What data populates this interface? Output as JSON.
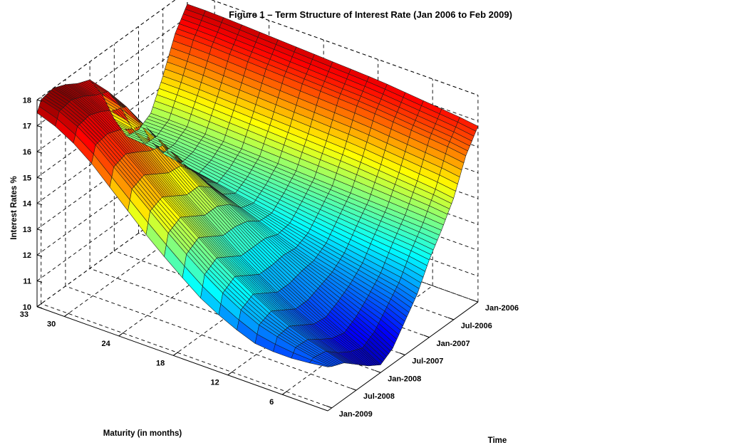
{
  "chart_data": {
    "type": "surface",
    "title": "Figure 1 – Term Structure of Interest Rate (Jan 2006 to Feb 2009)",
    "zlabel": "Interest Rates %",
    "ylabel": "Maturity (in months)",
    "xlabel": "Time",
    "z_ticks": [
      "10",
      "11",
      "12",
      "13",
      "14",
      "15",
      "16",
      "17",
      "18"
    ],
    "maturity_ticks": [
      "6",
      "12",
      "18",
      "24",
      "30",
      "33"
    ],
    "time_ticks": [
      "Jan-2006",
      "Jul-2006",
      "Jan-2007",
      "Jul-2007",
      "Jan-2008",
      "Jul-2008",
      "Jan-2009"
    ],
    "zlim": [
      10,
      18
    ],
    "maturity_lim": [
      1,
      33
    ],
    "time_range": [
      "Jan-2006",
      "Feb-2009"
    ],
    "colormap": "jet",
    "grid": true,
    "time_months_from_Jan2006": [
      0,
      3,
      6,
      9,
      12,
      15,
      18,
      21,
      24,
      27,
      30,
      33,
      36,
      37
    ],
    "maturity_months": [
      1,
      3,
      6,
      9,
      12,
      15,
      18,
      21,
      24,
      27,
      30,
      33
    ],
    "rates": [
      [
        16.8,
        16.9,
        17.0,
        17.1,
        17.2,
        17.25,
        17.3,
        17.35,
        17.4,
        17.45,
        17.5,
        17.5
      ],
      [
        16.0,
        16.1,
        16.2,
        16.3,
        16.4,
        16.45,
        16.5,
        16.55,
        16.6,
        16.65,
        16.7,
        16.7
      ],
      [
        14.7,
        14.8,
        14.9,
        15.0,
        15.1,
        15.15,
        15.2,
        15.25,
        15.3,
        15.35,
        15.4,
        15.4
      ],
      [
        13.8,
        13.85,
        13.9,
        13.95,
        14.0,
        14.05,
        14.1,
        14.15,
        14.2,
        14.25,
        14.3,
        14.3
      ],
      [
        13.0,
        13.1,
        13.2,
        13.3,
        13.4,
        13.5,
        13.6,
        13.7,
        13.8,
        13.9,
        14.0,
        14.0
      ],
      [
        12.0,
        12.2,
        12.4,
        12.6,
        12.8,
        13.0,
        13.2,
        13.4,
        13.6,
        13.8,
        14.0,
        14.1
      ],
      [
        11.3,
        11.6,
        11.9,
        12.2,
        12.5,
        12.9,
        13.3,
        13.7,
        14.1,
        14.5,
        14.9,
        15.1
      ],
      [
        10.6,
        11.0,
        11.5,
        12.0,
        12.5,
        13.1,
        13.7,
        14.3,
        14.9,
        15.5,
        16.1,
        16.4
      ],
      [
        10.3,
        10.7,
        11.2,
        11.8,
        12.4,
        13.1,
        13.9,
        14.7,
        15.5,
        16.3,
        17.0,
        17.3
      ],
      [
        10.6,
        10.9,
        11.3,
        11.8,
        12.4,
        13.1,
        13.9,
        14.7,
        15.6,
        16.5,
        17.2,
        17.5
      ],
      [
        11.0,
        11.2,
        11.6,
        12.1,
        12.7,
        13.4,
        14.2,
        15.0,
        15.9,
        16.8,
        17.5,
        17.8
      ],
      [
        11.4,
        11.6,
        11.9,
        12.4,
        13.0,
        13.7,
        14.5,
        15.3,
        16.2,
        17.0,
        17.7,
        18.0
      ],
      [
        11.6,
        11.7,
        11.9,
        12.2,
        12.7,
        13.4,
        14.2,
        15.1,
        16.0,
        16.9,
        17.6,
        17.9
      ],
      [
        11.7,
        11.6,
        11.5,
        11.6,
        12.0,
        12.6,
        13.4,
        14.3,
        15.3,
        16.3,
        17.1,
        17.5
      ]
    ]
  }
}
